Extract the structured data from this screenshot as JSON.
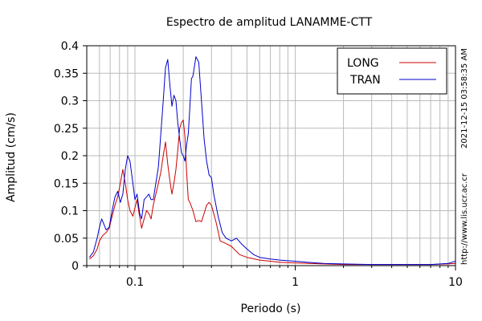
{
  "chart_data": {
    "type": "line",
    "title": "Espectro de amplitud LANAMME-CTT",
    "xlabel": "Periodo (s)",
    "ylabel": "Amplitud (cm/s)",
    "x_scale": "log",
    "xlim": [
      0.05,
      10
    ],
    "ylim": [
      0,
      0.4
    ],
    "x_ticks": [
      {
        "value": 0.1,
        "label": "0.1"
      },
      {
        "value": 1,
        "label": "1"
      },
      {
        "value": 10,
        "label": "10"
      }
    ],
    "y_ticks": [
      {
        "value": 0,
        "label": "0"
      },
      {
        "value": 0.05,
        "label": "0.05"
      },
      {
        "value": 0.1,
        "label": "0.1"
      },
      {
        "value": 0.15,
        "label": "0.15"
      },
      {
        "value": 0.2,
        "label": "0.2"
      },
      {
        "value": 0.25,
        "label": "0.25"
      },
      {
        "value": 0.3,
        "label": "0.3"
      },
      {
        "value": 0.35,
        "label": "0.35"
      },
      {
        "value": 0.4,
        "label": "0.4"
      }
    ],
    "grid": true,
    "legend_position": "top-right",
    "series": [
      {
        "name": "LONG",
        "color": "#cc0000",
        "points": [
          [
            0.052,
            0.012
          ],
          [
            0.055,
            0.018
          ],
          [
            0.058,
            0.03
          ],
          [
            0.06,
            0.045
          ],
          [
            0.063,
            0.055
          ],
          [
            0.066,
            0.06
          ],
          [
            0.069,
            0.068
          ],
          [
            0.072,
            0.09
          ],
          [
            0.075,
            0.11
          ],
          [
            0.078,
            0.125
          ],
          [
            0.081,
            0.15
          ],
          [
            0.084,
            0.175
          ],
          [
            0.087,
            0.15
          ],
          [
            0.09,
            0.12
          ],
          [
            0.093,
            0.1
          ],
          [
            0.097,
            0.09
          ],
          [
            0.1,
            0.105
          ],
          [
            0.103,
            0.12
          ],
          [
            0.106,
            0.095
          ],
          [
            0.11,
            0.068
          ],
          [
            0.114,
            0.085
          ],
          [
            0.118,
            0.1
          ],
          [
            0.122,
            0.095
          ],
          [
            0.126,
            0.085
          ],
          [
            0.13,
            0.11
          ],
          [
            0.135,
            0.13
          ],
          [
            0.14,
            0.15
          ],
          [
            0.145,
            0.17
          ],
          [
            0.15,
            0.2
          ],
          [
            0.155,
            0.225
          ],
          [
            0.16,
            0.185
          ],
          [
            0.165,
            0.155
          ],
          [
            0.17,
            0.13
          ],
          [
            0.175,
            0.15
          ],
          [
            0.18,
            0.175
          ],
          [
            0.185,
            0.21
          ],
          [
            0.19,
            0.25
          ],
          [
            0.195,
            0.26
          ],
          [
            0.2,
            0.265
          ],
          [
            0.205,
            0.235
          ],
          [
            0.21,
            0.17
          ],
          [
            0.215,
            0.12
          ],
          [
            0.22,
            0.115
          ],
          [
            0.23,
            0.1
          ],
          [
            0.24,
            0.08
          ],
          [
            0.25,
            0.082
          ],
          [
            0.26,
            0.08
          ],
          [
            0.27,
            0.095
          ],
          [
            0.28,
            0.11
          ],
          [
            0.29,
            0.115
          ],
          [
            0.3,
            0.11
          ],
          [
            0.32,
            0.08
          ],
          [
            0.34,
            0.045
          ],
          [
            0.37,
            0.04
          ],
          [
            0.4,
            0.035
          ],
          [
            0.45,
            0.02
          ],
          [
            0.5,
            0.015
          ],
          [
            0.6,
            0.01
          ],
          [
            0.7,
            0.008
          ],
          [
            0.8,
            0.006
          ],
          [
            1,
            0.005
          ],
          [
            1.5,
            0.003
          ],
          [
            2,
            0.002
          ],
          [
            3,
            0.002
          ],
          [
            5,
            0.002
          ],
          [
            7,
            0.002
          ],
          [
            9,
            0.003
          ],
          [
            10,
            0.004
          ]
        ]
      },
      {
        "name": "TRAN",
        "color": "#0000cc",
        "points": [
          [
            0.052,
            0.015
          ],
          [
            0.055,
            0.025
          ],
          [
            0.058,
            0.05
          ],
          [
            0.06,
            0.07
          ],
          [
            0.062,
            0.085
          ],
          [
            0.064,
            0.075
          ],
          [
            0.066,
            0.065
          ],
          [
            0.069,
            0.07
          ],
          [
            0.072,
            0.1
          ],
          [
            0.075,
            0.125
          ],
          [
            0.078,
            0.135
          ],
          [
            0.081,
            0.115
          ],
          [
            0.084,
            0.13
          ],
          [
            0.087,
            0.175
          ],
          [
            0.09,
            0.2
          ],
          [
            0.093,
            0.19
          ],
          [
            0.097,
            0.15
          ],
          [
            0.1,
            0.12
          ],
          [
            0.103,
            0.13
          ],
          [
            0.107,
            0.095
          ],
          [
            0.11,
            0.085
          ],
          [
            0.114,
            0.12
          ],
          [
            0.118,
            0.125
          ],
          [
            0.122,
            0.13
          ],
          [
            0.126,
            0.12
          ],
          [
            0.13,
            0.12
          ],
          [
            0.135,
            0.15
          ],
          [
            0.14,
            0.18
          ],
          [
            0.145,
            0.24
          ],
          [
            0.15,
            0.3
          ],
          [
            0.155,
            0.36
          ],
          [
            0.16,
            0.375
          ],
          [
            0.165,
            0.33
          ],
          [
            0.17,
            0.29
          ],
          [
            0.175,
            0.31
          ],
          [
            0.18,
            0.3
          ],
          [
            0.185,
            0.26
          ],
          [
            0.19,
            0.23
          ],
          [
            0.195,
            0.205
          ],
          [
            0.2,
            0.2
          ],
          [
            0.205,
            0.19
          ],
          [
            0.21,
            0.22
          ],
          [
            0.215,
            0.24
          ],
          [
            0.22,
            0.29
          ],
          [
            0.225,
            0.34
          ],
          [
            0.23,
            0.345
          ],
          [
            0.24,
            0.38
          ],
          [
            0.25,
            0.37
          ],
          [
            0.26,
            0.3
          ],
          [
            0.27,
            0.23
          ],
          [
            0.28,
            0.19
          ],
          [
            0.29,
            0.165
          ],
          [
            0.3,
            0.16
          ],
          [
            0.31,
            0.13
          ],
          [
            0.33,
            0.09
          ],
          [
            0.35,
            0.06
          ],
          [
            0.37,
            0.05
          ],
          [
            0.4,
            0.045
          ],
          [
            0.43,
            0.05
          ],
          [
            0.46,
            0.04
          ],
          [
            0.5,
            0.03
          ],
          [
            0.55,
            0.02
          ],
          [
            0.6,
            0.015
          ],
          [
            0.7,
            0.012
          ],
          [
            0.8,
            0.01
          ],
          [
            1,
            0.008
          ],
          [
            1.2,
            0.006
          ],
          [
            1.5,
            0.004
          ],
          [
            2,
            0.003
          ],
          [
            3,
            0.002
          ],
          [
            5,
            0.002
          ],
          [
            7,
            0.002
          ],
          [
            9,
            0.004
          ],
          [
            10,
            0.008
          ]
        ]
      }
    ]
  },
  "side_note": "http://www.lis.ucr.ac.cr",
  "timestamp": "2021-12-15 03:58:35 AM"
}
